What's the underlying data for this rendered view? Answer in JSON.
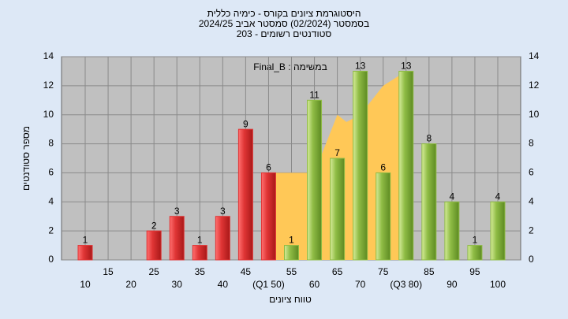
{
  "chart_data": {
    "type": "bar",
    "title_lines": [
      "היסטוגרמת ציונים בקורס - כימיה כללית",
      "בסמסטר  (02/2024)  סמסטר אביב 2024/25",
      "סטודנטים רשומים - 203"
    ],
    "legend_text": "Final_B : במשימה",
    "y_label": "מספר סטודנטים",
    "x_label": "טווח ציונים",
    "categories": [
      "10",
      "15",
      "20",
      "25",
      "30",
      "35",
      "40",
      "45",
      "(Q1 50)",
      "55",
      "60",
      "65",
      "70",
      "75",
      "(Q3 80)",
      "85",
      "90",
      "95",
      "100"
    ],
    "series": [
      {
        "color": "#e03535",
        "values": [
          1,
          0,
          0,
          2,
          3,
          1,
          3,
          9,
          6,
          null,
          null,
          null,
          null,
          null,
          null,
          null,
          null,
          null,
          null
        ]
      },
      {
        "color": "#8fbc45",
        "values": [
          null,
          null,
          null,
          null,
          null,
          null,
          null,
          null,
          null,
          1,
          11,
          7,
          13,
          6,
          13,
          8,
          4,
          1,
          4
        ]
      }
    ],
    "highlight": {
      "color": "#ffc857",
      "x": [
        50,
        55,
        60,
        65,
        67,
        70,
        75,
        80
      ],
      "values": [
        6,
        6,
        6,
        10,
        9.5,
        10,
        12,
        13
      ]
    },
    "ylim": [
      0,
      14
    ],
    "yticks": [
      0,
      2,
      4,
      6,
      8,
      10,
      12,
      14
    ],
    "grid": true
  }
}
